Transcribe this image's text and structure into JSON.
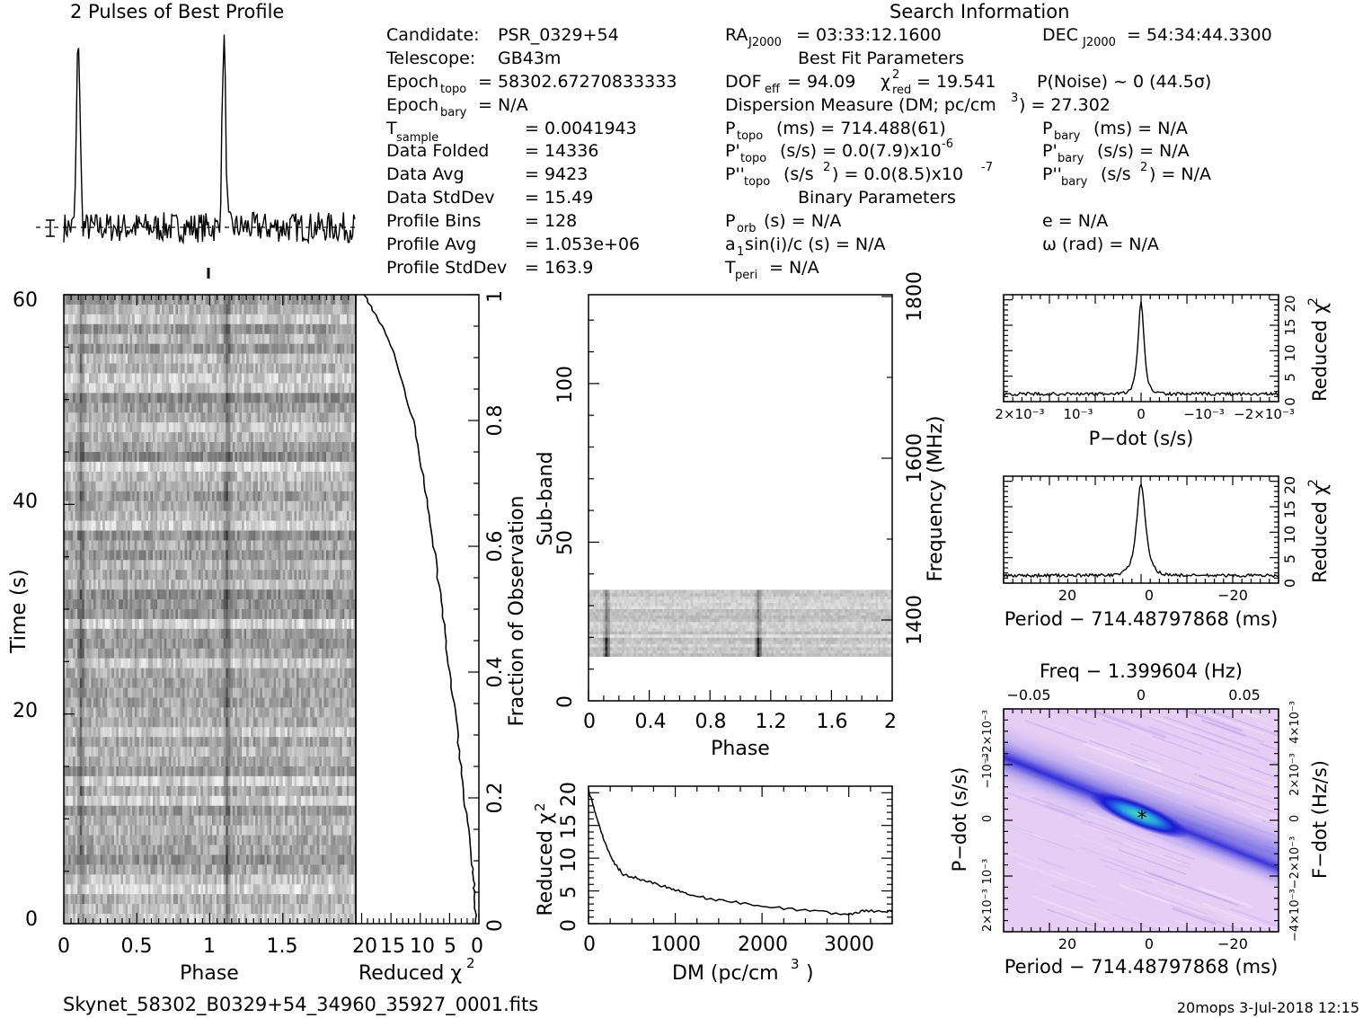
{
  "page": {
    "footer_left": "Skynet_58302_B0329+54_34960_35927_0001.fits",
    "footer_right": "20mops   3-Jul-2018 12:15"
  },
  "profile": {
    "title": "2 Pulses of Best Profile"
  },
  "info": {
    "left": [
      {
        "label": "Candidate:",
        "value": "PSR_0329+54"
      },
      {
        "label": "Telescope:",
        "value": "GB43m"
      },
      {
        "label": "Epoch",
        "sub": "topo",
        "value": "= 58302.67270833333"
      },
      {
        "label": "Epoch",
        "sub": "bary",
        "value": "= N/A"
      },
      {
        "label": "T",
        "sub": "sample",
        "value": "=   0.0041943"
      },
      {
        "label": "Data Folded",
        "value": "=   14336"
      },
      {
        "label": "Data Avg",
        "value": "=   9423"
      },
      {
        "label": "Data StdDev",
        "value": "=   15.49"
      },
      {
        "label": "Profile Bins",
        "value": "=   128"
      },
      {
        "label": "Profile Avg",
        "value": "=   1.053e+06"
      },
      {
        "label": "Profile StdDev",
        "value": "=   163.9"
      }
    ],
    "search_header": "Search Information",
    "ra": "RA",
    "ra_sub": "J2000",
    "ra_value": "= 03:33:12.1600",
    "dec": "DEC",
    "dec_sub": "J2000",
    "dec_value": "= 54:34:44.3300",
    "best_fit_header": "Best Fit Parameters",
    "dof": "DOF",
    "dof_sub": "eff",
    "dof_value": "= 94.09",
    "chi": "χ",
    "chi_sup": "2",
    "chi_sub": "red",
    "chi_value": "= 19.541",
    "pnoise": "P(Noise) ~ 0   (44.5σ)",
    "dm_line": "Dispersion Measure (DM; pc/cm",
    "dm_sup": "3",
    "dm_value": ") = 27.302",
    "ptopo": "P",
    "ptopo_sub": "topo",
    "ptopo_value": "(ms) =  714.488(61)",
    "pdtopo": "P'",
    "pdtopo_sub": "topo",
    "pdtopo_value": "(s/s) = 0.0(7.9)x10",
    "pdtopo_sup": "-6",
    "pddtopo": "P''",
    "pddtopo_sub": "topo",
    "pddtopo_value": "(s/s",
    "pddtopo_sup": "2",
    "pddtopo_value2": ") = 0.0(8.5)x10",
    "pddtopo_sup2": "-7",
    "pbary": "P",
    "pbary_sub": "bary",
    "pbary_value": "(ms) = N/A",
    "pdbary": "P'",
    "pdbary_sub": "bary",
    "pdbary_value": "(s/s) = N/A",
    "pddbary": "P''",
    "pddbary_sub": "bary",
    "pddbary_value": "(s/s",
    "pddbary_sup": "2",
    "pddbary_value2": ") = N/A",
    "binary_header": "Binary Parameters",
    "porb": "P",
    "porb_sub": "orb",
    "porb_value": "(s) = N/A",
    "a1": "a",
    "a1_sub": "1",
    "a1_value": "sin(i)/c (s) = N/A",
    "tperi": "T",
    "tperi_sub": "peri",
    "tperi_value": "= N/A",
    "ecc": "e = N/A",
    "omega": "ω (rad) = N/A"
  },
  "chart_data": [
    {
      "id": "pulse_profile",
      "type": "line",
      "title": "2 Pulses of Best Profile",
      "x_range": [
        0,
        2
      ],
      "peaks_phase": [
        0.1,
        1.1
      ],
      "baseline": 0.12
    },
    {
      "id": "time_phase",
      "type": "heatmap",
      "xlabel": "Phase",
      "ylabel": "Time (s)",
      "xticks": [
        "0",
        "0.5",
        "1",
        "1.5"
      ],
      "yticks": [
        "0",
        "20",
        "40",
        "60"
      ],
      "xlim": [
        0,
        2
      ],
      "ylim": [
        0,
        60
      ],
      "pulse_phase": [
        0.12,
        1.12
      ]
    },
    {
      "id": "chi_vs_time",
      "type": "line",
      "xlabel": "Reduced χ",
      "xlabel_sup": "2",
      "xticks": [
        "20",
        "15",
        "10",
        "5",
        "0"
      ],
      "xlim": [
        21,
        0
      ],
      "right_label": "Fraction of Observation",
      "right_ticks": [
        "0",
        "0.2",
        "0.4",
        "0.6",
        "0.8",
        "1"
      ],
      "points": [
        [
          0.0,
          0.5
        ],
        [
          0.05,
          0.7
        ],
        [
          0.1,
          1.2
        ],
        [
          0.2,
          2.5
        ],
        [
          0.3,
          3.6
        ],
        [
          0.4,
          5.0
        ],
        [
          0.5,
          6.3
        ],
        [
          0.6,
          7.7
        ],
        [
          0.7,
          9.3
        ],
        [
          0.8,
          11.2
        ],
        [
          0.9,
          14.3
        ],
        [
          0.95,
          16.5
        ],
        [
          1.0,
          19.6
        ]
      ]
    },
    {
      "id": "subband_phase",
      "type": "heatmap",
      "xlabel": "Phase",
      "ylabel": "Sub-band",
      "right_label": "Frequency (MHz)",
      "xticks": [
        "0",
        "0.4",
        "0.8",
        "1.2",
        "1.6",
        "2"
      ],
      "yticks": [
        "0",
        "50",
        "100"
      ],
      "right_ticks": [
        "1400",
        "1600",
        "1800"
      ],
      "xlim": [
        0,
        2
      ],
      "ylim": [
        0,
        128
      ],
      "active_subbands": [
        14,
        35
      ],
      "pulse_phase": [
        0.12,
        1.12
      ]
    },
    {
      "id": "chi_vs_dm",
      "type": "line",
      "xlabel": "DM (pc/cm",
      "xlabel_sup": "3",
      "ylabel": "Reduced χ",
      "ylabel_sup": "2",
      "xticks": [
        "0",
        "1000",
        "2000",
        "3000"
      ],
      "yticks": [
        "0",
        "5",
        "10",
        "15",
        "20"
      ],
      "xlim": [
        0,
        3500
      ],
      "ylim": [
        0,
        21
      ],
      "points": [
        [
          0,
          20.5
        ],
        [
          100,
          16.0
        ],
        [
          200,
          12.0
        ],
        [
          300,
          9.2
        ],
        [
          400,
          7.5
        ],
        [
          600,
          6.8
        ],
        [
          800,
          6.0
        ],
        [
          1000,
          5.2
        ],
        [
          1200,
          4.3
        ],
        [
          1500,
          3.6
        ],
        [
          2000,
          2.7
        ],
        [
          2500,
          2.0
        ],
        [
          3000,
          1.4
        ],
        [
          3200,
          2.0
        ],
        [
          3500,
          1.8
        ]
      ]
    },
    {
      "id": "chi_vs_pdot",
      "type": "line",
      "xlabel": "P−dot (s/s)",
      "ylabel": "Reduced χ",
      "ylabel_sup": "2",
      "xticks": [
        "2×10⁻³",
        "10⁻³",
        "0",
        "−10⁻³",
        "−2×10⁻³"
      ],
      "yticks": [
        "0",
        "5",
        "10",
        "15",
        "20"
      ],
      "ylim": [
        0,
        21
      ],
      "peak": 19.5,
      "baseline": 1.5
    },
    {
      "id": "chi_vs_period",
      "type": "line",
      "xlabel": "Period − 714.48797868 (ms)",
      "ylabel": "Reduced χ",
      "ylabel_sup": "2",
      "xticks": [
        "20",
        "0",
        "−20"
      ],
      "yticks": [
        "0",
        "5",
        "10",
        "15",
        "20"
      ],
      "ylim": [
        0,
        21
      ],
      "peak": 19.5,
      "baseline": 1.5
    },
    {
      "id": "pdot_period_map",
      "type": "heatmap",
      "title": "Freq − 1.399604 (Hz)",
      "xlabel": "Period − 714.48797868 (ms)",
      "ylabel": "P−dot (s/s)",
      "right_label": "F−dot (Hz/s)",
      "xticks": [
        "20",
        "0",
        "−20"
      ],
      "top_ticks": [
        "−0.05",
        "0",
        "0.05"
      ],
      "yticks": [
        "2×10⁻³",
        "10⁻³",
        "0",
        "−10⁻³",
        "−2×10⁻³"
      ],
      "right_ticks": [
        "−4×10⁻³",
        "−2×10⁻³",
        "0",
        "2×10⁻³",
        "4×10⁻³"
      ],
      "colors": {
        "background": "#e6cdf4",
        "mid": "#7a72e0",
        "deep": "#1a1ad8",
        "peak": "#3fd2a8"
      }
    }
  ]
}
